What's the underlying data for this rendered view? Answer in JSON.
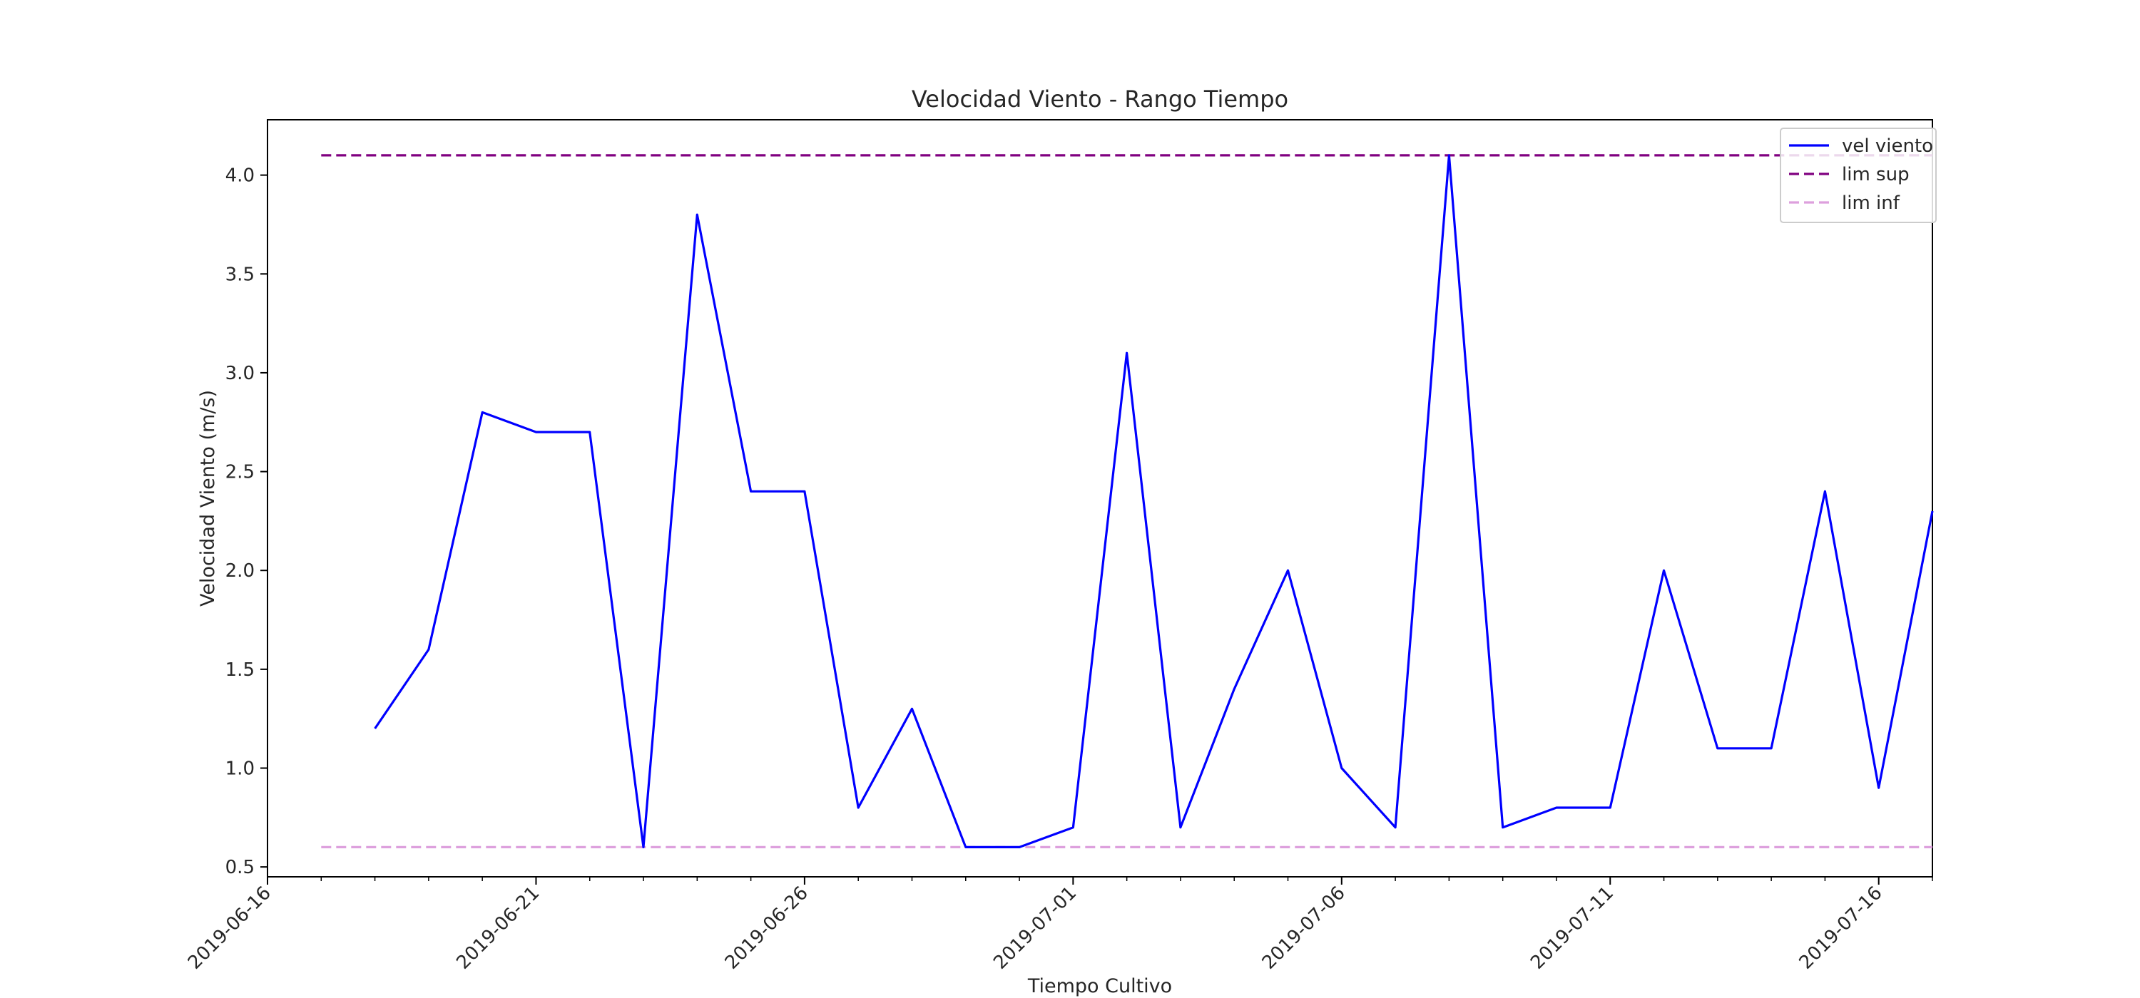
{
  "chart_data": {
    "type": "line",
    "title": "Velocidad Viento - Rango Tiempo",
    "xlabel": "Tiempo Cultivo",
    "ylabel": "Velocidad Viento (m/s)",
    "xlim": [
      "2019-06-16",
      "2019-07-17"
    ],
    "ylim": [
      0.45,
      4.28
    ],
    "x_ticks": [
      "2019-06-16",
      "2019-06-21",
      "2019-06-26",
      "2019-07-01",
      "2019-07-06",
      "2019-07-11",
      "2019-07-16"
    ],
    "y_ticks": [
      "0.5",
      "1.0",
      "1.5",
      "2.0",
      "2.5",
      "3.0",
      "3.5",
      "4.0"
    ],
    "grid": false,
    "legend_position": "top-right",
    "series": [
      {
        "name": "vel viento",
        "color": "#0000ff",
        "style": "solid",
        "x": [
          "2019-06-18",
          "2019-06-19",
          "2019-06-20",
          "2019-06-21",
          "2019-06-22",
          "2019-06-23",
          "2019-06-24",
          "2019-06-25",
          "2019-06-26",
          "2019-06-27",
          "2019-06-28",
          "2019-06-29",
          "2019-06-30",
          "2019-07-01",
          "2019-07-02",
          "2019-07-03",
          "2019-07-04",
          "2019-07-05",
          "2019-07-06",
          "2019-07-07",
          "2019-07-08",
          "2019-07-09",
          "2019-07-10",
          "2019-07-11",
          "2019-07-12",
          "2019-07-13",
          "2019-07-14",
          "2019-07-15",
          "2019-07-16",
          "2019-07-17"
        ],
        "values": [
          1.2,
          1.6,
          2.8,
          2.7,
          2.7,
          0.6,
          3.8,
          2.4,
          2.4,
          0.8,
          1.3,
          0.6,
          0.6,
          0.7,
          3.1,
          0.7,
          1.4,
          2.0,
          1.0,
          0.7,
          4.1,
          0.7,
          0.8,
          0.8,
          2.0,
          1.1,
          1.1,
          2.4,
          0.9,
          2.3
        ]
      },
      {
        "name": "lim sup",
        "color": "#800080",
        "style": "dashed",
        "x": [
          "2019-06-17",
          "2019-07-17"
        ],
        "values": [
          4.1,
          4.1
        ]
      },
      {
        "name": "lim inf",
        "color": "#dda0dd",
        "style": "dashed",
        "x": [
          "2019-06-17",
          "2019-07-17"
        ],
        "values": [
          0.6,
          0.6
        ]
      }
    ]
  }
}
